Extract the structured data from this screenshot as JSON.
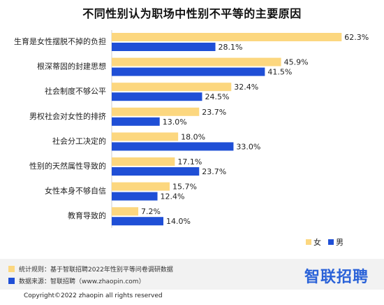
{
  "chart_data": {
    "type": "bar",
    "orientation": "horizontal",
    "title": "不同性别认为职场中性别不平等的主要原因",
    "categories": [
      "生育是女性摆脱不掉的负担",
      "根深蒂固的封建思想",
      "社会制度不够公平",
      "男权社会对女性的排挤",
      "社会分工决定的",
      "性别的天然属性导致的",
      "女性本身不够自信",
      "教育导致的"
    ],
    "series": [
      {
        "name": "女",
        "color": "#fcd77f",
        "values": [
          62.3,
          45.9,
          32.4,
          23.7,
          18.0,
          17.1,
          15.7,
          7.2
        ],
        "labels": [
          "62.3%",
          "45.9%",
          "32.4%",
          "23.7%",
          "18.0%",
          "17.1%",
          "15.7%",
          "7.2%"
        ]
      },
      {
        "name": "男",
        "color": "#1f4fd6",
        "values": [
          28.1,
          41.5,
          24.5,
          13.0,
          33.0,
          23.7,
          12.4,
          14.0
        ],
        "labels": [
          "28.1%",
          "41.5%",
          "24.5%",
          "13.0%",
          "33.0%",
          "23.7%",
          "12.4%",
          "14.0%"
        ]
      }
    ],
    "xlim": [
      0,
      70
    ],
    "grid": false,
    "legend_position": "bottom-right"
  },
  "notes": {
    "method": "统计规则：基于智联招聘2022年性别平等问卷调研数据",
    "source": "数据来源：智联招聘（www.zhaopin.com）",
    "method_color": "#fcd77f",
    "source_color": "#1f4fd6"
  },
  "brand": {
    "logo_text": "智联招聘",
    "color": "#2a62d8"
  },
  "copyright": "Copyright©2022 zhaopin all rights reserved"
}
